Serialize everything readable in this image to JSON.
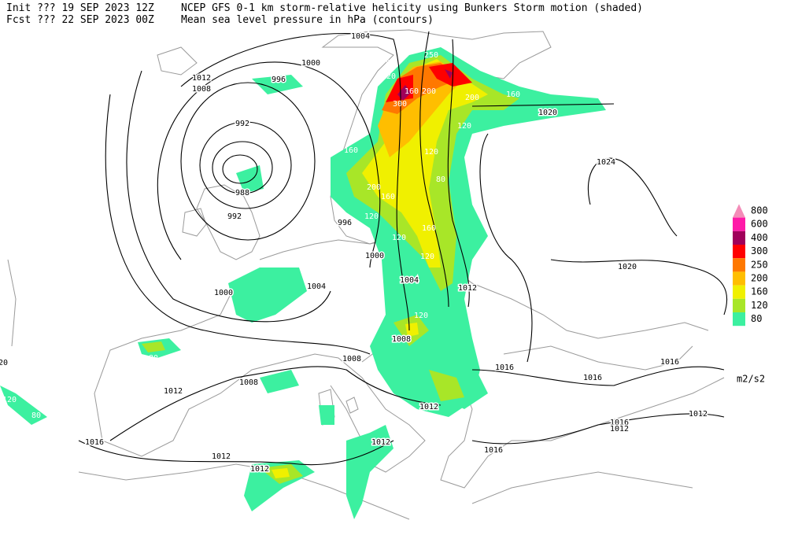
{
  "header": {
    "init": "Init  ??? 19 SEP 2023 12Z",
    "fcst": "Fcst ??? 22 SEP 2023 00Z",
    "title_shaded": "NCEP GFS 0-1 km storm-relative helicity using Bunkers Storm motion (shaded)",
    "title_contours": "Mean sea level pressure in hPa (contours)"
  },
  "legend": {
    "levels": [
      800,
      600,
      400,
      300,
      250,
      200,
      160,
      120,
      80
    ],
    "colors": [
      "#f48cb8",
      "#ff1aa8",
      "#a0005a",
      "#ff0000",
      "#ff7800",
      "#ffbe00",
      "#f0f000",
      "#a8e628",
      "#3cf0a0"
    ],
    "unit": "m2/s2"
  },
  "contour_labels": [
    "1004",
    "1000",
    "1012",
    "1008",
    "996",
    "992",
    "988",
    "992",
    "996",
    "1000",
    "1004",
    "1012",
    "1020",
    "1024",
    "1020",
    "1000",
    "1004",
    "1008",
    "1008",
    "1008",
    "1012",
    "1016",
    "1016",
    "1016",
    "1012",
    "1012",
    "1016",
    "1012",
    "1012",
    "1016",
    "1016",
    "1012",
    "1012",
    "20"
  ],
  "helicity_labels": [
    "80",
    "120",
    "250",
    "200",
    "160",
    "300",
    "200",
    "160",
    "120",
    "160",
    "200",
    "160",
    "120",
    "120",
    "160",
    "120",
    "80",
    "120",
    "80",
    "120",
    "80",
    "120",
    "80"
  ]
}
